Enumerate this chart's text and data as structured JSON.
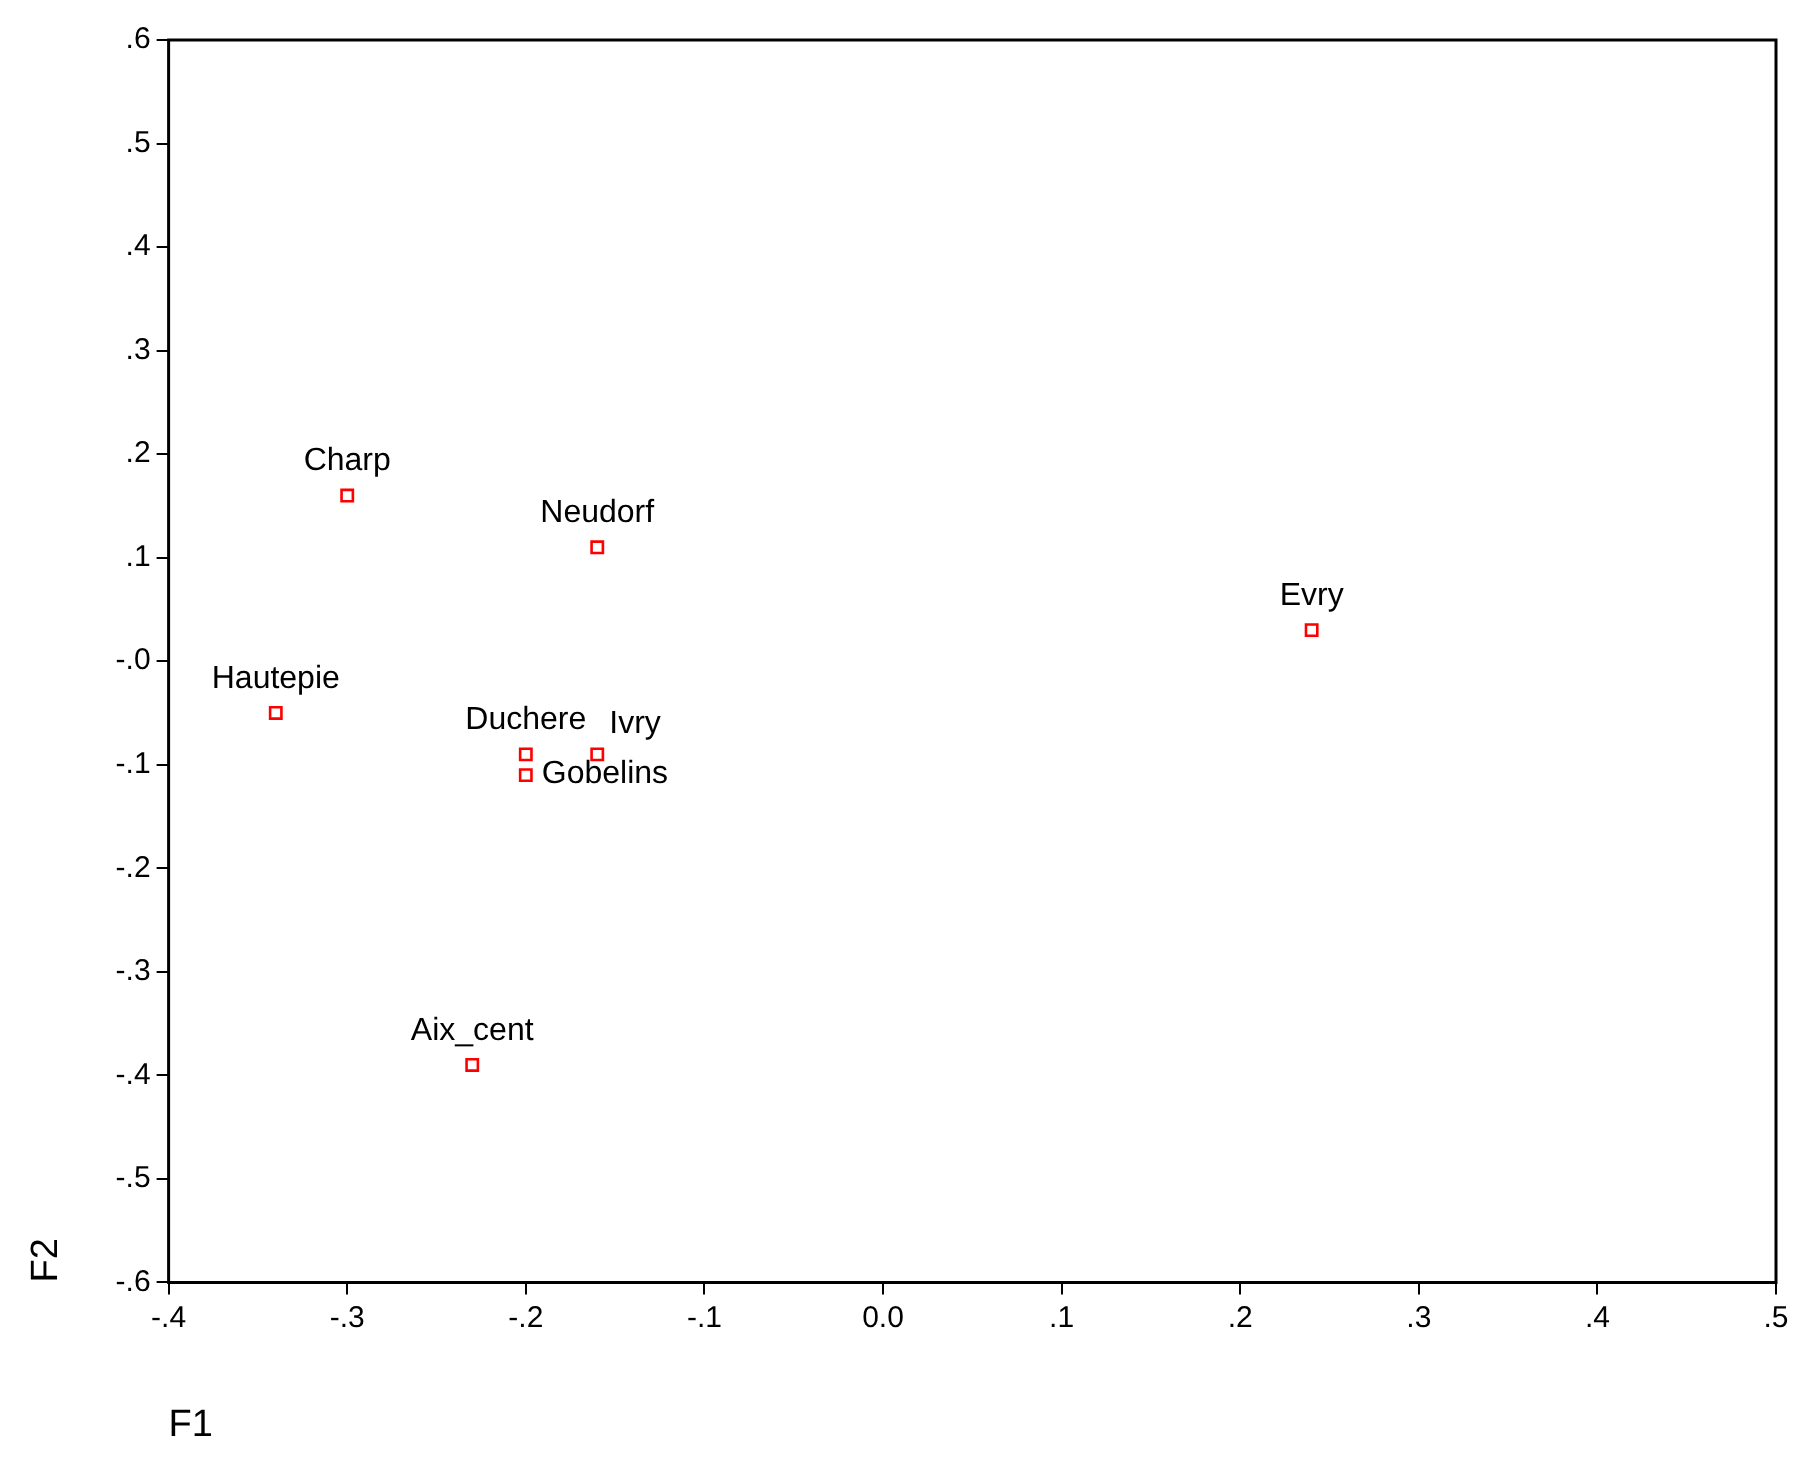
{
  "chart_data": {
    "type": "scatter",
    "xlabel": "F1",
    "ylabel": "F2",
    "marker": "square",
    "grid": false,
    "legend": false,
    "series": [
      {
        "color": "#ff0000",
        "x": [
          -0.3,
          -0.16,
          0.24,
          -0.34,
          -0.2,
          -0.2,
          -0.16,
          -0.23
        ],
        "values": [
          0.16,
          0.11,
          0.03,
          -0.05,
          -0.09,
          -0.11,
          -0.09,
          -0.39
        ]
      }
    ],
    "annotations": [
      {
        "text": "Charp",
        "x": -0.3,
        "y": 0.16
      },
      {
        "text": "Neudorf",
        "x": -0.16,
        "y": 0.11
      },
      {
        "text": "Evry",
        "x": 0.24,
        "y": 0.03
      },
      {
        "text": "Hautepie",
        "x": -0.34,
        "y": -0.05
      },
      {
        "text": "Duchere",
        "x": -0.2,
        "y": -0.09
      },
      {
        "text": "Gobelins",
        "x": -0.2,
        "y": -0.11
      },
      {
        "text": "Ivry",
        "x": -0.16,
        "y": -0.09
      },
      {
        "text": "Aix_cent",
        "x": -0.23,
        "y": -0.39
      }
    ],
    "xlim": [
      -0.4,
      0.5
    ],
    "xticks": [
      {
        "value": -0.4,
        "label": "-.4"
      },
      {
        "value": -0.3,
        "label": "-.3"
      },
      {
        "value": -0.2,
        "label": "-.2"
      },
      {
        "value": -0.1,
        "label": "-.1"
      },
      {
        "value": 0,
        "label": "0.0"
      },
      {
        "value": 0.1,
        "label": ".1"
      },
      {
        "value": 0.2,
        "label": ".2"
      },
      {
        "value": 0.3,
        "label": ".3"
      },
      {
        "value": 0.4,
        "label": ".4"
      },
      {
        "value": 0.5,
        "label": ".5"
      }
    ],
    "ylim": [
      -0.6,
      0.6
    ],
    "yticks": [
      {
        "value": -0.6,
        "label": "-.6"
      },
      {
        "value": -0.5,
        "label": "-.5"
      },
      {
        "value": -0.4,
        "label": "-.4"
      },
      {
        "value": -0.3,
        "label": "-.3"
      },
      {
        "value": -0.2,
        "label": "-.2"
      },
      {
        "value": -0.1,
        "label": "-.1"
      },
      {
        "value": 0,
        "label": "-.0"
      },
      {
        "value": 0.1,
        "label": ".1"
      },
      {
        "value": 0.2,
        "label": ".2"
      },
      {
        "value": 0.3,
        "label": ".3"
      },
      {
        "value": 0.4,
        "label": ".4"
      },
      {
        "value": 0.5,
        "label": ".5"
      },
      {
        "value": 0.6,
        "label": ".6"
      }
    ]
  }
}
